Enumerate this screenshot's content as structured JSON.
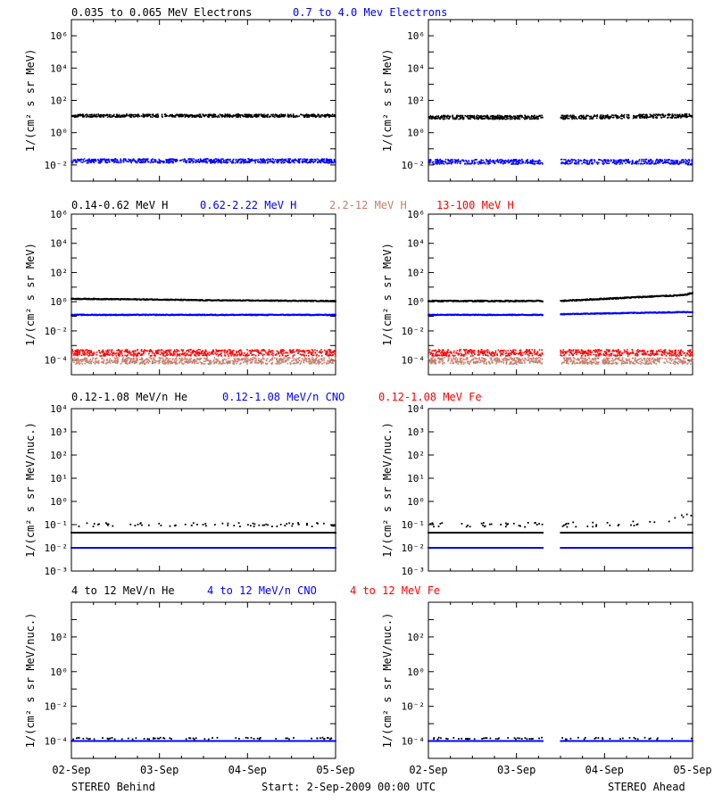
{
  "colors": {
    "black": "#000000",
    "blue": "#0000ff",
    "salmon": "#c87d69",
    "red": "#ff0000"
  },
  "footer": {
    "left": "STEREO Behind",
    "center": "Start:  2-Sep-2009 00:00 UTC",
    "right": "STEREO Ahead"
  },
  "x_ticks": [
    "02-Sep",
    "03-Sep",
    "04-Sep",
    "05-Sep"
  ],
  "chart_data": [
    {
      "type": "scatter",
      "row": 1,
      "legend": [
        {
          "text": "0.035 to 0.065 MeV Electrons",
          "color": "#000000"
        },
        {
          "text": "0.7 to 4.0 Mev Electrons",
          "color": "#0000ff"
        }
      ],
      "ylabel": "1/(cm² s sr MeV)",
      "ylim_exp": [
        -3,
        7
      ],
      "y_ticks": [
        {
          "exp": -2,
          "label": "10⁻²"
        },
        {
          "exp": 0,
          "label": "10⁰"
        },
        {
          "exp": 2,
          "label": "10²"
        },
        {
          "exp": 4,
          "label": "10⁴"
        },
        {
          "exp": 6,
          "label": "10⁶"
        }
      ],
      "xlim_days": [
        0,
        3
      ],
      "panels": [
        {
          "name": "STEREO Behind",
          "gaps": [],
          "series": [
            {
              "color": "#000000",
              "kind": "band",
              "trend": [
                [
                  0,
                  1.05
                ],
                [
                  3,
                  1.05
                ]
              ],
              "spread": 0.09
            },
            {
              "color": "#0000ff",
              "kind": "band",
              "trend": [
                [
                  0,
                  -1.75
                ],
                [
                  3,
                  -1.75
                ]
              ],
              "spread": 0.13
            }
          ]
        },
        {
          "name": "STEREO Ahead",
          "gaps": [
            [
              1.3,
              1.5
            ]
          ],
          "series": [
            {
              "color": "#000000",
              "kind": "band",
              "trend": [
                [
                  0,
                  0.95
                ],
                [
                  1.3,
                  0.95
                ],
                [
                  1.5,
                  0.95
                ],
                [
                  3,
                  1.05
                ]
              ],
              "spread": 0.12
            },
            {
              "color": "#0000ff",
              "kind": "band",
              "trend": [
                [
                  0,
                  -1.8
                ],
                [
                  3,
                  -1.8
                ]
              ],
              "spread": 0.15
            }
          ]
        }
      ]
    },
    {
      "type": "scatter",
      "row": 2,
      "legend": [
        {
          "text": "0.14-0.62 MeV H",
          "color": "#000000"
        },
        {
          "text": "0.62-2.22 MeV H",
          "color": "#0000ff"
        },
        {
          "text": "2.2-12 MeV H",
          "color": "#c87d69"
        },
        {
          "text": "13-100 MeV H",
          "color": "#ff0000"
        }
      ],
      "ylabel": "1/(cm² s sr MeV)",
      "ylim_exp": [
        -5,
        6
      ],
      "y_ticks": [
        {
          "exp": -4,
          "label": "10⁻⁴"
        },
        {
          "exp": -2,
          "label": "10⁻²"
        },
        {
          "exp": 0,
          "label": "10⁰"
        },
        {
          "exp": 2,
          "label": "10²"
        },
        {
          "exp": 4,
          "label": "10⁴"
        },
        {
          "exp": 6,
          "label": "10⁶"
        }
      ],
      "xlim_days": [
        0,
        3
      ],
      "panels": [
        {
          "name": "STEREO Behind",
          "gaps": [],
          "series": [
            {
              "color": "#000000",
              "kind": "line",
              "trend": [
                [
                  0,
                  0.2
                ],
                [
                  1.0,
                  0.15
                ],
                [
                  1.5,
                  0.1
                ],
                [
                  3,
                  0.05
                ]
              ],
              "spread": 0.03
            },
            {
              "color": "#0000ff",
              "kind": "line",
              "trend": [
                [
                  0,
                  -0.9
                ],
                [
                  3,
                  -0.9
                ]
              ],
              "spread": 0.03
            },
            {
              "color": "#c87d69",
              "kind": "band",
              "trend": [
                [
                  0,
                  -4.05
                ],
                [
                  3,
                  -4.05
                ]
              ],
              "spread": 0.22
            },
            {
              "color": "#ff0000",
              "kind": "band",
              "trend": [
                [
                  0,
                  -3.5
                ],
                [
                  3,
                  -3.5
                ]
              ],
              "spread": 0.22
            }
          ]
        },
        {
          "name": "STEREO Ahead",
          "gaps": [
            [
              1.3,
              1.5
            ]
          ],
          "series": [
            {
              "color": "#000000",
              "kind": "line",
              "trend": [
                [
                  0,
                  0.05
                ],
                [
                  1.3,
                  0.05
                ],
                [
                  1.5,
                  0.05
                ],
                [
                  2.0,
                  0.2
                ],
                [
                  2.5,
                  0.35
                ],
                [
                  2.9,
                  0.45
                ],
                [
                  3,
                  0.6
                ]
              ],
              "spread": 0.04
            },
            {
              "color": "#0000ff",
              "kind": "line",
              "trend": [
                [
                  0,
                  -0.9
                ],
                [
                  1.3,
                  -0.9
                ],
                [
                  1.5,
                  -0.85
                ],
                [
                  3,
                  -0.7
                ]
              ],
              "spread": 0.03
            },
            {
              "color": "#c87d69",
              "kind": "band",
              "trend": [
                [
                  0,
                  -4.05
                ],
                [
                  3,
                  -4.05
                ]
              ],
              "spread": 0.22
            },
            {
              "color": "#ff0000",
              "kind": "band",
              "trend": [
                [
                  0,
                  -3.5
                ],
                [
                  3,
                  -3.5
                ]
              ],
              "spread": 0.22
            }
          ]
        }
      ]
    },
    {
      "type": "scatter",
      "row": 3,
      "legend": [
        {
          "text": "0.12-1.08 MeV/n He",
          "color": "#000000"
        },
        {
          "text": "0.12-1.08 MeV/n CNO",
          "color": "#0000ff"
        },
        {
          "text": "0.12-1.08 MeV Fe",
          "color": "#ff0000"
        }
      ],
      "ylabel": "1/(cm² s sr MeV/nuc.)",
      "ylim_exp": [
        -3,
        4
      ],
      "y_ticks": [
        {
          "exp": -3,
          "label": "10⁻³"
        },
        {
          "exp": -2,
          "label": "10⁻²"
        },
        {
          "exp": -1,
          "label": "10⁻¹"
        },
        {
          "exp": 0,
          "label": "10⁰"
        },
        {
          "exp": 1,
          "label": "10¹"
        },
        {
          "exp": 2,
          "label": "10²"
        },
        {
          "exp": 3,
          "label": "10³"
        },
        {
          "exp": 4,
          "label": "10⁴"
        }
      ],
      "xlim_days": [
        0,
        3
      ],
      "panels": [
        {
          "name": "STEREO Behind",
          "gaps": [],
          "series": [
            {
              "color": "#000000",
              "kind": "line",
              "trend": [
                [
                  0,
                  -1.35
                ],
                [
                  3,
                  -1.35
                ]
              ],
              "spread": 0.0
            },
            {
              "color": "#000000",
              "kind": "sparse",
              "trend": [
                [
                  0,
                  -1.0
                ],
                [
                  3,
                  -1.0
                ]
              ],
              "spread": 0.08
            },
            {
              "color": "#ff0000",
              "kind": "line",
              "trend": [
                [
                  0,
                  -2.0
                ],
                [
                  3,
                  -2.0
                ]
              ],
              "spread": 0.0
            },
            {
              "color": "#0000ff",
              "kind": "line",
              "trend": [
                [
                  0,
                  -2.0
                ],
                [
                  3,
                  -2.0
                ]
              ],
              "spread": 0.0
            }
          ]
        },
        {
          "name": "STEREO Ahead",
          "gaps": [
            [
              1.3,
              1.5
            ]
          ],
          "series": [
            {
              "color": "#000000",
              "kind": "line",
              "trend": [
                [
                  0,
                  -1.35
                ],
                [
                  3,
                  -1.35
                ]
              ],
              "spread": 0.0
            },
            {
              "color": "#000000",
              "kind": "sparse",
              "trend": [
                [
                  0,
                  -1.0
                ],
                [
                  2.0,
                  -1.0
                ],
                [
                  2.6,
                  -0.9
                ],
                [
                  3,
                  -0.6
                ]
              ],
              "spread": 0.1
            },
            {
              "color": "#ff0000",
              "kind": "line",
              "trend": [
                [
                  0,
                  -2.0
                ],
                [
                  3,
                  -2.0
                ]
              ],
              "spread": 0.0
            },
            {
              "color": "#0000ff",
              "kind": "line",
              "trend": [
                [
                  0,
                  -2.0
                ],
                [
                  3,
                  -2.0
                ]
              ],
              "spread": 0.0
            }
          ]
        }
      ]
    },
    {
      "type": "scatter",
      "row": 4,
      "legend": [
        {
          "text": "4 to 12 MeV/n He",
          "color": "#000000"
        },
        {
          "text": "4 to 12 MeV/n CNO",
          "color": "#0000ff"
        },
        {
          "text": "4 to 12 MeV Fe",
          "color": "#ff0000"
        }
      ],
      "ylabel": "1/(cm² s sr MeV/nuc.)",
      "ylim_exp": [
        -5,
        4
      ],
      "y_ticks": [
        {
          "exp": -4,
          "label": "10⁻⁴"
        },
        {
          "exp": -2,
          "label": "10⁻²"
        },
        {
          "exp": 0,
          "label": "10⁰"
        },
        {
          "exp": 2,
          "label": "10²"
        }
      ],
      "xlim_days": [
        0,
        3
      ],
      "panels": [
        {
          "name": "STEREO Behind",
          "gaps": [],
          "series": [
            {
              "color": "#0000ff",
              "kind": "line",
              "trend": [
                [
                  0,
                  -4.0
                ],
                [
                  3,
                  -4.0
                ]
              ],
              "spread": 0.0
            },
            {
              "color": "#000000",
              "kind": "sparse",
              "trend": [
                [
                  0,
                  -3.85
                ],
                [
                  3,
                  -3.85
                ]
              ],
              "spread": 0.05
            }
          ]
        },
        {
          "name": "STEREO Ahead",
          "gaps": [
            [
              1.3,
              1.5
            ]
          ],
          "series": [
            {
              "color": "#0000ff",
              "kind": "line",
              "trend": [
                [
                  0,
                  -4.0
                ],
                [
                  3,
                  -4.0
                ]
              ],
              "spread": 0.0
            },
            {
              "color": "#000000",
              "kind": "sparse",
              "trend": [
                [
                  0,
                  -3.85
                ],
                [
                  3,
                  -3.85
                ]
              ],
              "spread": 0.05
            }
          ]
        }
      ]
    }
  ]
}
